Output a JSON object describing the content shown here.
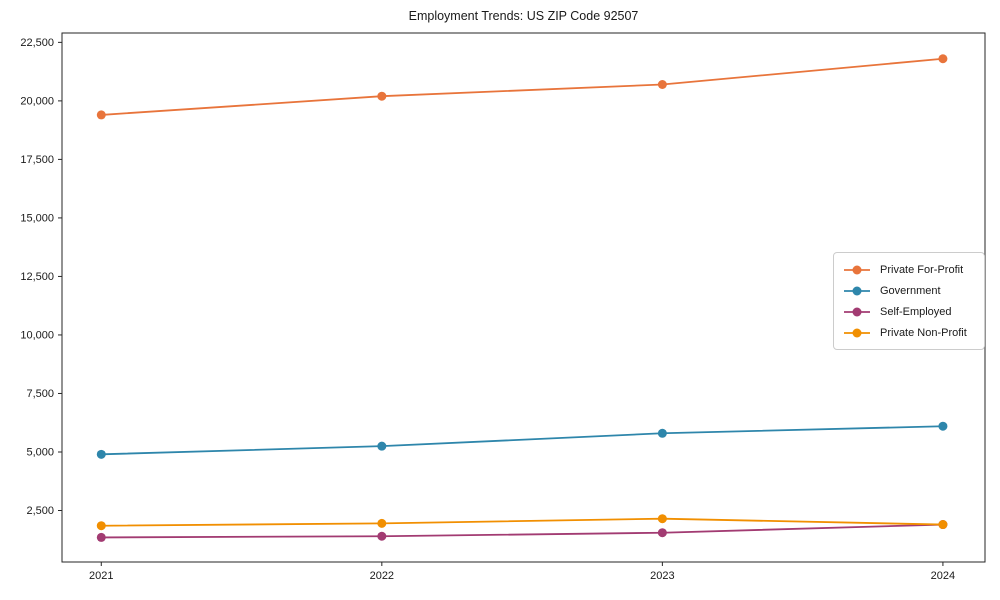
{
  "chart_data": {
    "type": "line",
    "title": "Employment Trends: US ZIP Code 92507",
    "xlabel": "",
    "ylabel": "",
    "grid": false,
    "legend_position": "center right",
    "x": [
      2021,
      2022,
      2023,
      2024
    ],
    "categories": [
      "2021",
      "2022",
      "2023",
      "2024"
    ],
    "series": [
      {
        "name": "Private For-Profit",
        "color": "#E8743B",
        "values": [
          19400,
          20200,
          20700,
          21800
        ]
      },
      {
        "name": "Government",
        "color": "#2E86AB",
        "values": [
          4900,
          5250,
          5800,
          6100
        ]
      },
      {
        "name": "Self-Employed",
        "color": "#A23B72",
        "values": [
          1350,
          1400,
          1550,
          1900
        ]
      },
      {
        "name": "Private Non-Profit",
        "color": "#F18F01",
        "values": [
          1850,
          1950,
          2150,
          1900
        ]
      }
    ],
    "ytick_values": [
      2500,
      5000,
      7500,
      10000,
      12500,
      15000,
      17500,
      20000,
      22500
    ],
    "ytick_labels": [
      "2,500",
      "5,000",
      "7,500",
      "10,000",
      "12,500",
      "15,000",
      "17,500",
      "20,000",
      "22,500"
    ],
    "xlim": [
      2020.86,
      2024.15
    ],
    "ylim": [
      300,
      22900
    ]
  }
}
